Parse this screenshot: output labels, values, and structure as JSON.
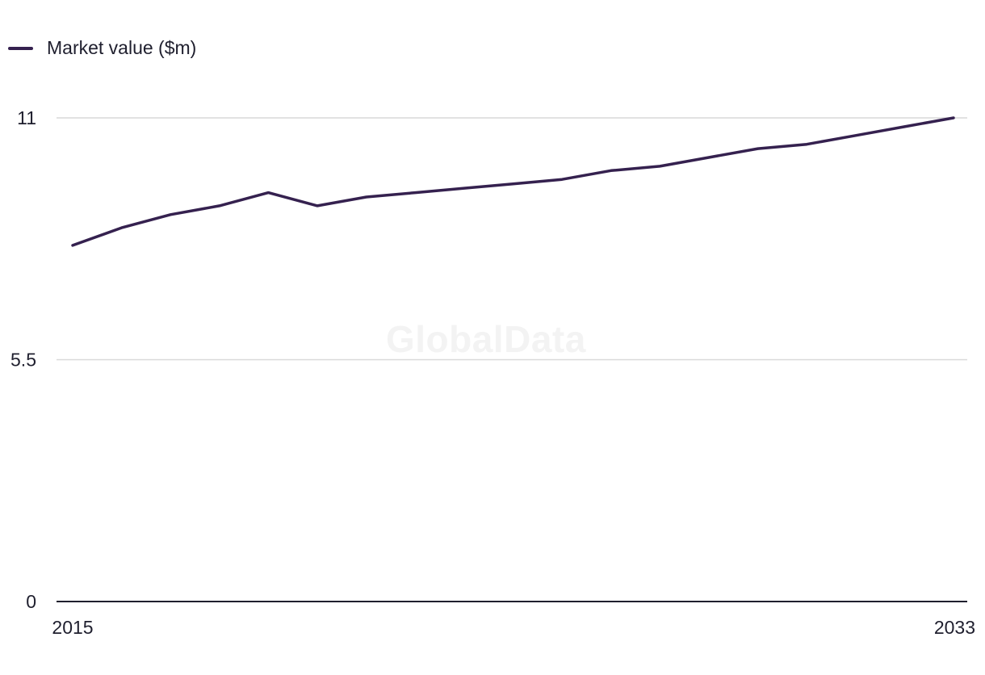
{
  "watermark": "GlobalData",
  "chart_data": {
    "type": "line",
    "title": "",
    "xlabel": "",
    "ylabel": "",
    "x": [
      2015,
      2016,
      2017,
      2018,
      2019,
      2020,
      2021,
      2022,
      2023,
      2024,
      2025,
      2026,
      2027,
      2028,
      2029,
      2030,
      2031,
      2032,
      2033
    ],
    "x_tick_labels": [
      "2015",
      "2033"
    ],
    "y_ticks": [
      0,
      5.5,
      11
    ],
    "y_tick_labels": [
      "0",
      "5.5",
      "11"
    ],
    "ylim": [
      0,
      11
    ],
    "grid": true,
    "legend_position": "top-left",
    "series": [
      {
        "name": "Market value ($m)",
        "color": "#35214f",
        "values": [
          8.1,
          8.5,
          8.8,
          9.0,
          9.3,
          9.0,
          9.2,
          9.3,
          9.4,
          9.5,
          9.6,
          9.8,
          9.9,
          10.1,
          10.3,
          10.4,
          10.6,
          10.8,
          11.0
        ]
      }
    ]
  }
}
